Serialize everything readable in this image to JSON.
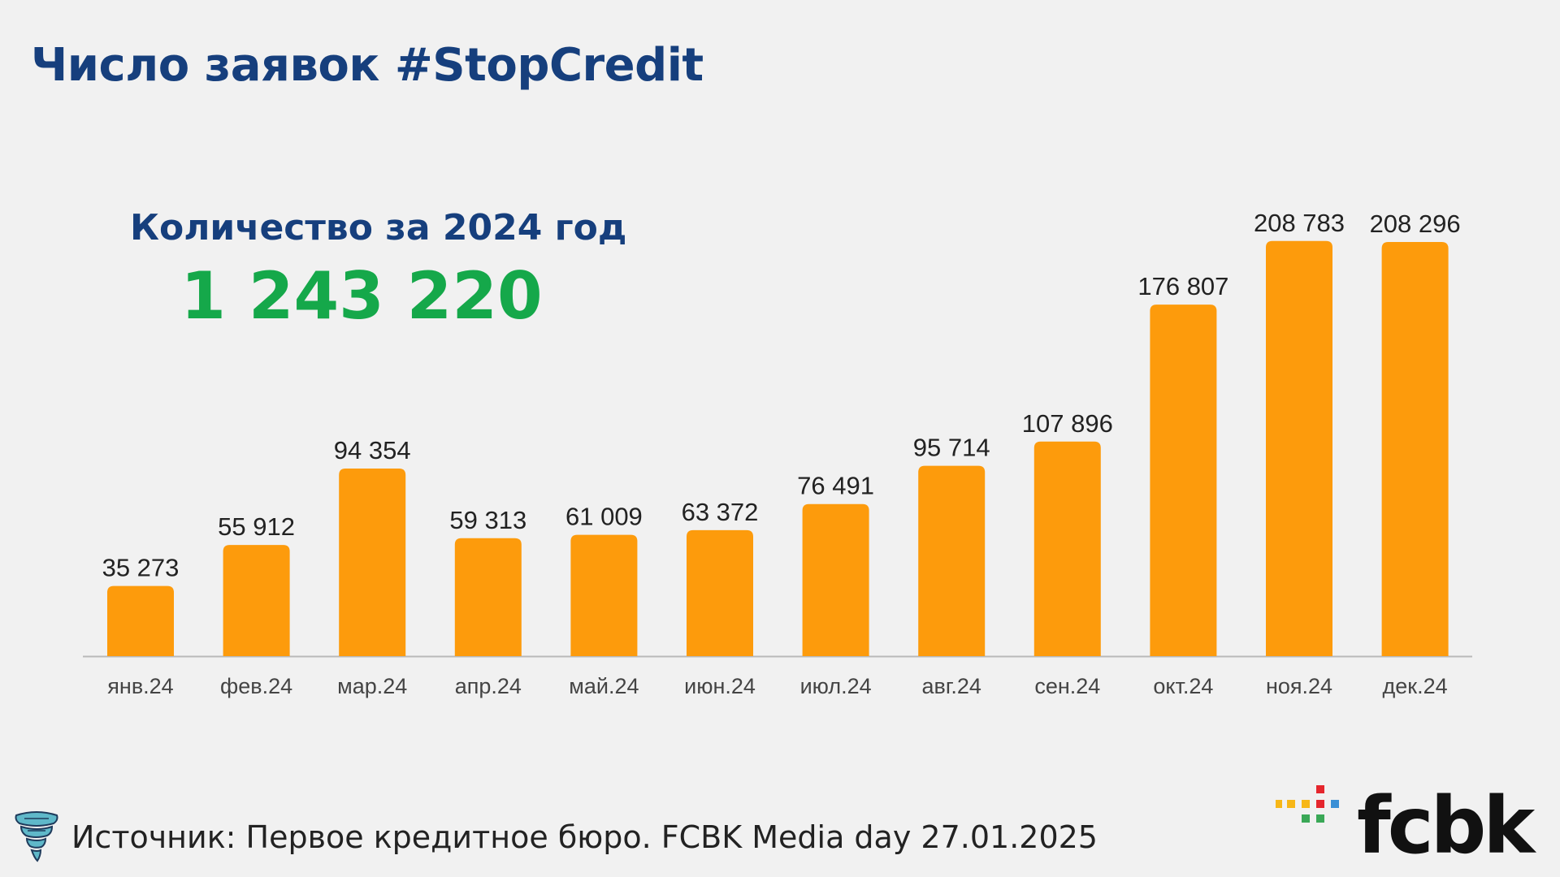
{
  "title": "Число заявок #StopCredit",
  "summary": {
    "label": "Количество за 2024 год",
    "value": "1 243 220"
  },
  "colors": {
    "title": "#163f7d",
    "total": "#15a84a",
    "bar": "#fd9b0c",
    "axis": "#b9b9b9",
    "text": "#222222"
  },
  "chart_data": {
    "type": "bar",
    "categories": [
      "янв.24",
      "фев.24",
      "мар.24",
      "апр.24",
      "май.24",
      "июн.24",
      "июл.24",
      "авг.24",
      "сен.24",
      "окт.24",
      "ноя.24",
      "дек.24"
    ],
    "values": [
      35273,
      55912,
      94354,
      59313,
      61009,
      63372,
      76491,
      95714,
      107896,
      176807,
      208783,
      208296
    ],
    "value_labels": [
      "35 273",
      "55 912",
      "94 354",
      "59 313",
      "61 009",
      "63 372",
      "76 491",
      "95 714",
      "107 896",
      "176 807",
      "208 783",
      "208 296"
    ],
    "ylim": [
      0,
      220000
    ],
    "grid": false,
    "legend": "none",
    "title": "",
    "xlabel": "",
    "ylabel": ""
  },
  "footer": {
    "icon": "tornado-icon",
    "source": "Источник: Первое кредитное бюро. FCBK Media day 27.01.2025"
  },
  "logo": {
    "text": "fcbk"
  }
}
